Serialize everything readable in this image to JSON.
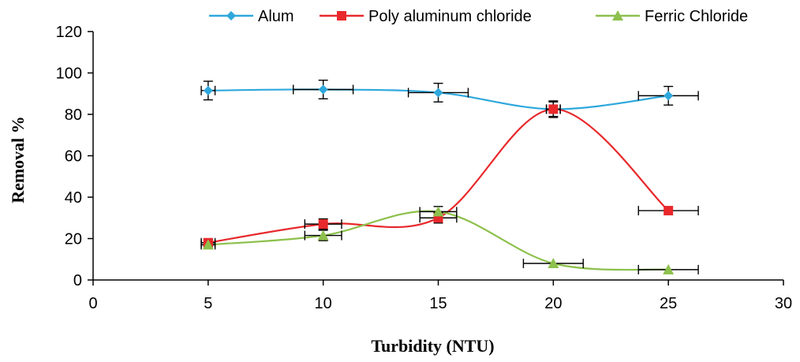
{
  "chart_data": {
    "type": "line",
    "xlabel": "Turbidity (NTU)",
    "ylabel": "Removal %",
    "xlim": [
      0,
      30
    ],
    "ylim": [
      0,
      120
    ],
    "xticks": [
      0,
      5,
      10,
      15,
      20,
      25,
      30
    ],
    "yticks": [
      0,
      20,
      40,
      60,
      80,
      100,
      120
    ],
    "xtick_labels": [
      "0",
      "5",
      "10",
      "15",
      "20",
      "25",
      "30"
    ],
    "ytick_labels": [
      "0",
      "20",
      "40",
      "60",
      "80",
      "100",
      "120"
    ],
    "grid": false,
    "legend_position": "top",
    "smoothed": true,
    "x": [
      5,
      10,
      15,
      20,
      25
    ],
    "series": [
      {
        "name": "Alum",
        "marker": "diamond",
        "color": "#2ea8dc",
        "values": [
          91.5,
          92,
          90.5,
          82.5,
          89
        ],
        "y_error": [
          4.5,
          4.5,
          4.5,
          3.5,
          4.5
        ],
        "x_error": [
          0.3,
          1.3,
          1.3,
          0.3,
          1.3
        ]
      },
      {
        "name": "Poly aluminum chloride",
        "marker": "square",
        "color": "#e8282b",
        "values": [
          18,
          27,
          30,
          82.5,
          33.5
        ],
        "y_error": [
          1.5,
          2.5,
          2.5,
          4,
          0
        ],
        "x_error": [
          0.3,
          0.8,
          0.8,
          0.3,
          1.3
        ]
      },
      {
        "name": "Ferric Chloride",
        "marker": "triangle",
        "color": "#8dc04c",
        "values": [
          17,
          21.5,
          33,
          8,
          5
        ],
        "y_error": [
          1,
          2.5,
          2.5,
          0,
          0
        ],
        "x_error": [
          0.3,
          0.8,
          0.8,
          1.3,
          1.3
        ]
      }
    ]
  }
}
